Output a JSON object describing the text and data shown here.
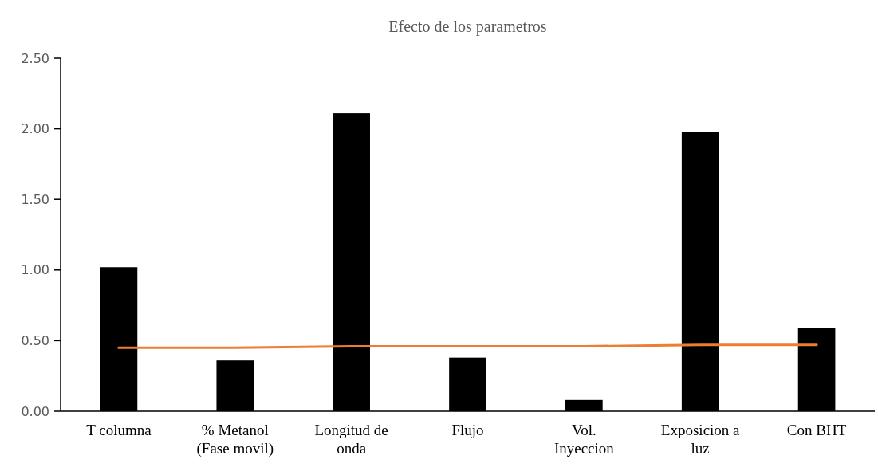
{
  "chart_data": {
    "type": "bar",
    "title": "Efecto de los parametros",
    "categories": [
      "T columna",
      "% Metanol (Fase movil)",
      "Longitud de onda",
      "Flujo",
      "Vol. Inyeccion",
      "Exposicion a luz",
      "Con BHT"
    ],
    "series": [
      {
        "color": "#000000",
        "values": [
          1.02,
          0.36,
          2.11,
          0.38,
          0.08,
          1.98,
          0.59
        ]
      },
      {
        "type": "line",
        "color": "#ed7d31",
        "values": [
          0.45,
          0.45,
          0.46,
          0.46,
          0.46,
          0.47,
          0.47
        ]
      }
    ],
    "ylim": [
      0,
      2.5
    ],
    "yticks": [
      {
        "value": 0,
        "label": "0.00"
      },
      {
        "value": 0.5,
        "label": "0.50"
      },
      {
        "value": 1,
        "label": "1.00"
      },
      {
        "value": 1.5,
        "label": "1.50"
      },
      {
        "value": 2,
        "label": "2.00"
      },
      {
        "value": 2.5,
        "label": "2.50"
      }
    ],
    "grid": false
  }
}
